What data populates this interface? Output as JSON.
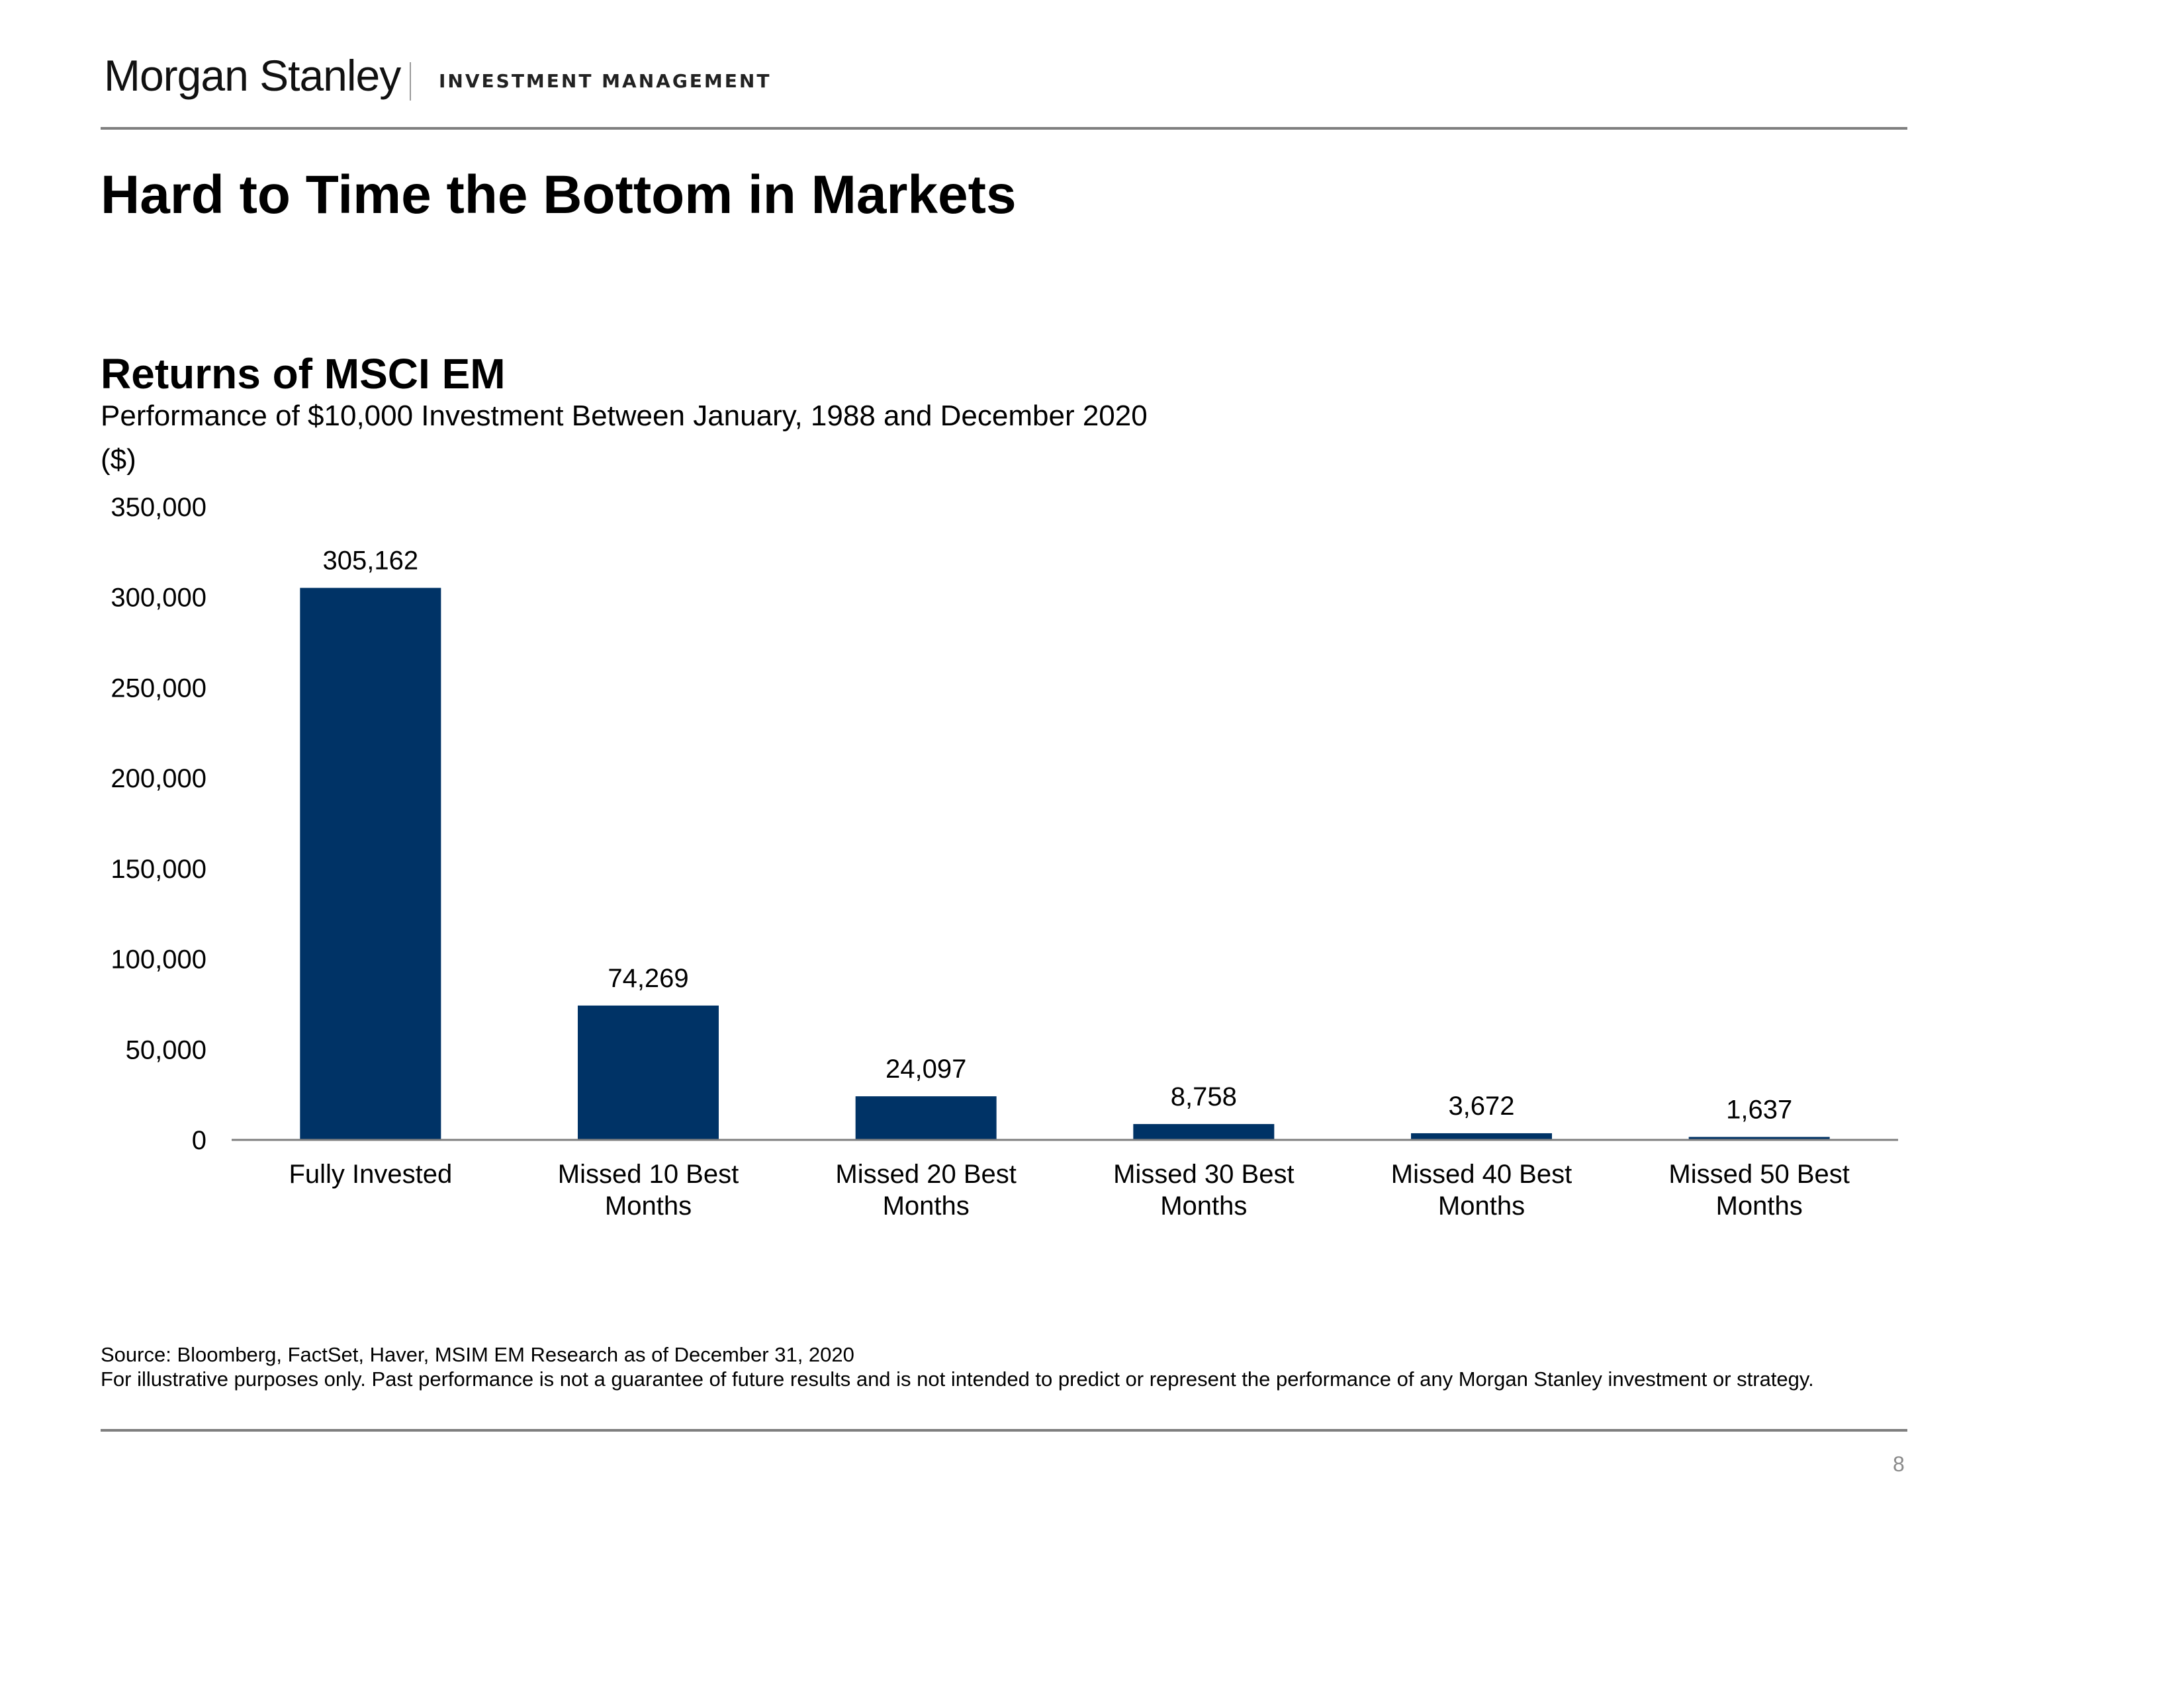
{
  "header": {
    "brand": "Morgan Stanley",
    "division": "INVESTMENT MANAGEMENT"
  },
  "page_title": "Hard to Time the Bottom in Markets",
  "chart_data": {
    "type": "bar",
    "title": "Returns of MSCI EM",
    "subtitle": "Performance of $10,000 Investment Between January, 1988 and December 2020",
    "ylabel": "($)",
    "xlabel": "",
    "categories": [
      [
        "Fully Invested"
      ],
      [
        "Missed 10 Best",
        "Months"
      ],
      [
        "Missed 20 Best",
        "Months"
      ],
      [
        "Missed 30 Best",
        "Months"
      ],
      [
        "Missed 40 Best",
        "Months"
      ],
      [
        "Missed 50 Best",
        "Months"
      ]
    ],
    "values": [
      305162,
      74269,
      24097,
      8758,
      3672,
      1637
    ],
    "data_labels": [
      "305,162",
      "74,269",
      "24,097",
      "8,758",
      "3,672",
      "1,637"
    ],
    "ylim": [
      0,
      350000
    ],
    "yticks": [
      0,
      50000,
      100000,
      150000,
      200000,
      250000,
      300000,
      350000
    ],
    "ytick_labels": [
      "0",
      "50,000",
      "100,000",
      "150,000",
      "200,000",
      "250,000",
      "300,000",
      "350,000"
    ],
    "grid": false,
    "legend": "none",
    "bar_color": "#003366",
    "axis_color": "#7f7f7f"
  },
  "footnotes": {
    "source": "Source: Bloomberg, FactSet, Haver, MSIM EM Research as of December 31, 2020",
    "disclaimer": "For illustrative purposes only. Past performance is not a guarantee of future results and is not intended to predict or represent the performance of any Morgan Stanley investment or  strategy."
  },
  "page_number": "8"
}
